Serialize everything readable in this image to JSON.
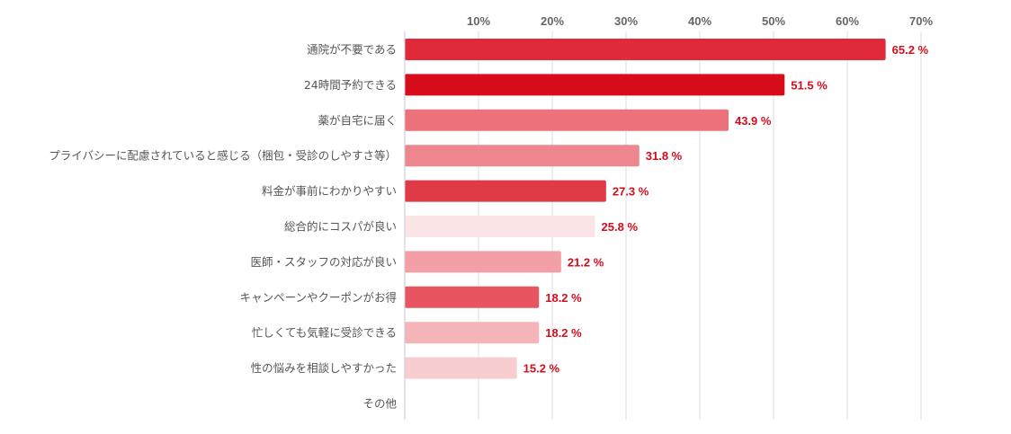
{
  "chart_data": {
    "type": "bar",
    "orientation": "horizontal",
    "title": "",
    "xlabel": "",
    "ylabel": "",
    "xlim": [
      0,
      70
    ],
    "ticks": [
      10,
      20,
      30,
      40,
      50,
      60,
      70
    ],
    "tick_labels": [
      "10%",
      "20%",
      "30%",
      "40%",
      "50%",
      "60%",
      "70%"
    ],
    "grid": true,
    "legend": "none",
    "categories": [
      "通院が不要である",
      "24時間予約できる",
      "薬が自宅に届く",
      "プライバシーに配慮されていると感じる（梱包・受診のしやすさ等）",
      "料金が事前にわかりやすい",
      "総合的にコスパが良い",
      "医師・スタッフの対応が良い",
      "キャンペーンやクーポンがお得",
      "忙しくても気軽に受診できる",
      "性の悩みを相談しやすかった",
      "その他"
    ],
    "values": [
      65.2,
      51.5,
      43.9,
      31.8,
      27.3,
      25.8,
      21.2,
      18.2,
      18.2,
      15.2,
      null
    ],
    "value_labels": [
      "65.2 %",
      "51.5 %",
      "43.9 %",
      "31.8 %",
      "27.3 %",
      "25.8 %",
      "21.2 %",
      "18.2 %",
      "18.2 %",
      "15.2 %",
      ""
    ],
    "colors": [
      "#e02a3a",
      "#d80c1a",
      "#ec727b",
      "#ee868e",
      "#e03a47",
      "#fbe5e7",
      "#f2a0a6",
      "#e85560",
      "#f4b4b8",
      "#f8cdd0",
      "#ffffff"
    ],
    "label_color": "#d40c1d",
    "gridline_color": "#dcdde3"
  }
}
